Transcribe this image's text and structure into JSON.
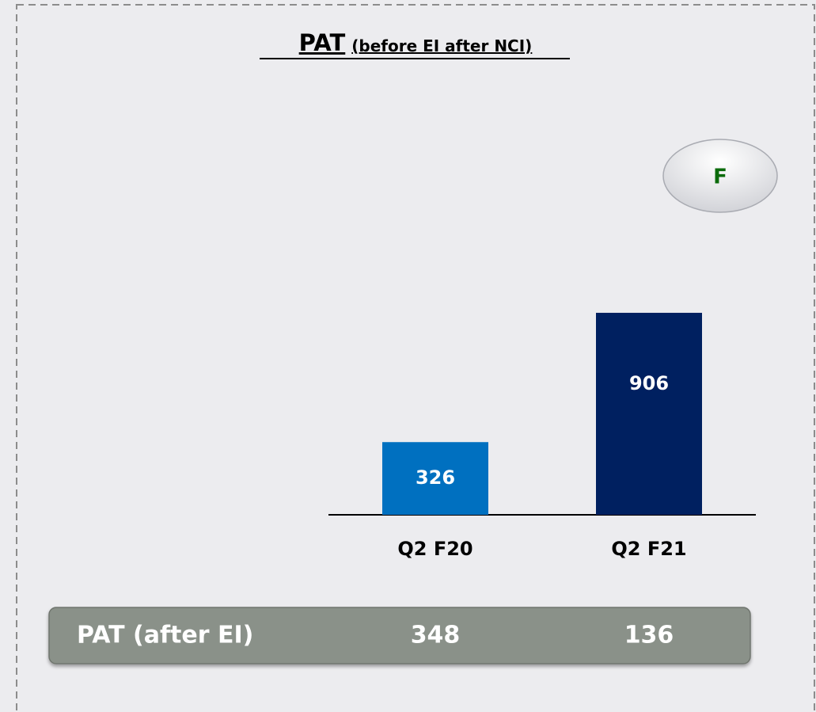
{
  "chart_data": {
    "type": "bar",
    "title": "PAT",
    "subtitle": "(before EI after NCI)",
    "categories": [
      "Q2 F20",
      "Q2 F21"
    ],
    "values": [
      326,
      906
    ],
    "colors": [
      "#0070c0",
      "#002060"
    ]
  },
  "badge": "F",
  "summary": {
    "label": "PAT (after EI)",
    "values": [
      348,
      136
    ]
  }
}
